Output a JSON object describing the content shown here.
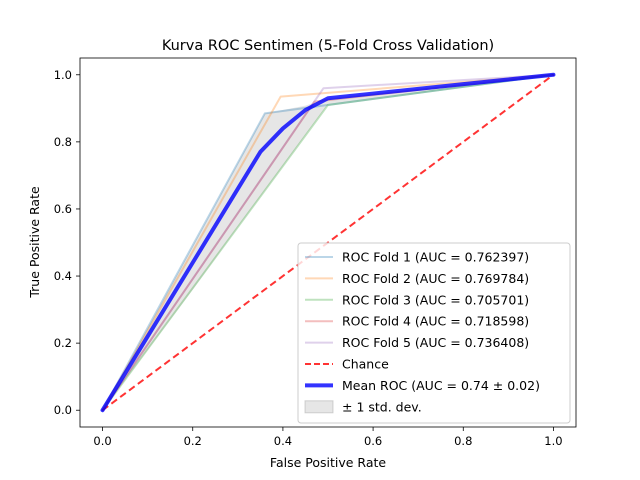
{
  "chart_data": {
    "type": "line",
    "title": "Kurva ROC Sentimen (5-Fold Cross Validation)",
    "xlabel": "False Positive Rate",
    "ylabel": "True Positive Rate",
    "xlim": [
      -0.05,
      1.05
    ],
    "ylim": [
      -0.05,
      1.05
    ],
    "xticks": [
      "0.0",
      "0.2",
      "0.4",
      "0.6",
      "0.8",
      "1.0"
    ],
    "yticks": [
      "0.0",
      "0.2",
      "0.4",
      "0.6",
      "0.8",
      "1.0"
    ],
    "grid": false,
    "legend_position": "lower-right",
    "series": [
      {
        "name": "ROC Fold 1 (AUC = 0.762397)",
        "color": "#1f77b4",
        "opacity": 0.3,
        "style": "solid",
        "x": [
          0,
          0.36,
          1
        ],
        "y": [
          0,
          0.885,
          1
        ]
      },
      {
        "name": "ROC Fold 2 (AUC = 0.769784)",
        "color": "#ff7f0e",
        "opacity": 0.3,
        "style": "solid",
        "x": [
          0,
          0.395,
          1
        ],
        "y": [
          0,
          0.935,
          1
        ]
      },
      {
        "name": "ROC Fold 3 (AUC = 0.705701)",
        "color": "#2ca02c",
        "opacity": 0.3,
        "style": "solid",
        "x": [
          0,
          0.5,
          1
        ],
        "y": [
          0,
          0.91,
          1
        ]
      },
      {
        "name": "ROC Fold 4 (AUC = 0.718598)",
        "color": "#d62728",
        "opacity": 0.3,
        "style": "solid",
        "x": [
          0,
          0.47,
          1
        ],
        "y": [
          0,
          0.92,
          1
        ]
      },
      {
        "name": "ROC Fold 5 (AUC = 0.736408)",
        "color": "#9467bd",
        "opacity": 0.3,
        "style": "solid",
        "x": [
          0,
          0.49,
          1
        ],
        "y": [
          0,
          0.96,
          1
        ]
      },
      {
        "name": "Chance",
        "color": "#ff0000",
        "opacity": 0.8,
        "style": "dashed",
        "x": [
          0,
          1
        ],
        "y": [
          0,
          1
        ]
      },
      {
        "name": "Mean ROC (AUC = 0.74 ± 0.02)",
        "color": "#0000ff",
        "opacity": 0.8,
        "style": "solid-thick",
        "x": [
          0,
          0.1,
          0.2,
          0.3,
          0.35,
          0.4,
          0.45,
          0.5,
          0.6,
          0.7,
          0.8,
          0.9,
          1.0
        ],
        "y": [
          0,
          0.22,
          0.44,
          0.66,
          0.77,
          0.84,
          0.895,
          0.93,
          0.944,
          0.958,
          0.972,
          0.986,
          1.0
        ]
      }
    ],
    "band": {
      "name": "± 1 std. dev.",
      "color": "#808080",
      "opacity": 0.2,
      "x": [
        0,
        0.1,
        0.2,
        0.3,
        0.36,
        0.4,
        0.45,
        0.5,
        0.6,
        0.7,
        0.8,
        0.9,
        1.0
      ],
      "upper": [
        0,
        0.245,
        0.49,
        0.737,
        0.885,
        0.895,
        0.908,
        0.93,
        0.944,
        0.958,
        0.972,
        0.986,
        1.0
      ],
      "lower": [
        0,
        0.18,
        0.36,
        0.546,
        0.655,
        0.728,
        0.82,
        0.912,
        0.93,
        0.947,
        0.965,
        0.982,
        1.0
      ]
    }
  }
}
